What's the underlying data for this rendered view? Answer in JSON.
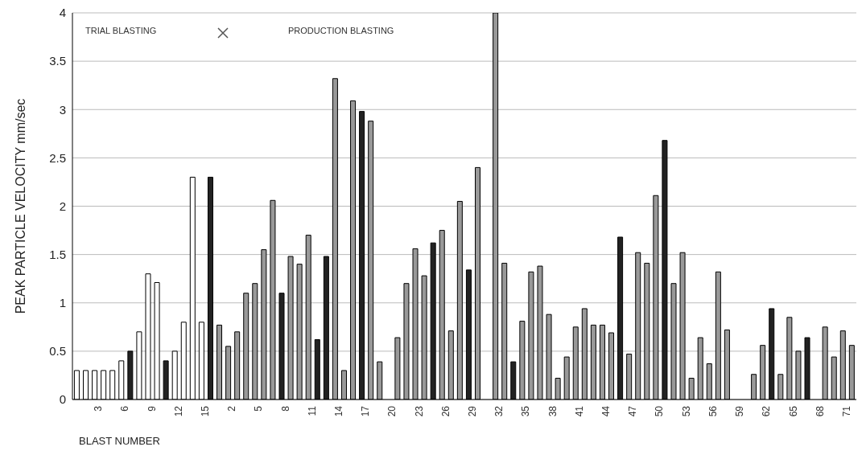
{
  "chart_data": {
    "type": "bar",
    "xlabel": "BLAST NUMBER",
    "ylabel": "PEAK PARTICLE VELOCITY mm/sec",
    "annotations": [
      "TRIAL BLASTING",
      "PRODUCTION BLASTING"
    ],
    "categories": [
      null,
      null,
      "3",
      null,
      null,
      "6",
      null,
      null,
      "9",
      null,
      null,
      "12",
      null,
      null,
      "15",
      null,
      null,
      "2",
      null,
      null,
      "5",
      null,
      null,
      "8",
      null,
      null,
      "11",
      null,
      null,
      "14",
      null,
      null,
      "17",
      null,
      null,
      "20",
      null,
      null,
      "23",
      null,
      null,
      "26",
      null,
      null,
      "29",
      null,
      null,
      "32",
      null,
      null,
      "35",
      null,
      null,
      "38",
      null,
      null,
      "41",
      null,
      null,
      "44",
      null,
      null,
      "47",
      null,
      null,
      "50",
      null,
      null,
      "53",
      null,
      null,
      "56",
      null,
      null,
      "59",
      null,
      null,
      "62",
      null,
      null,
      "65",
      null,
      null,
      "68",
      null,
      null,
      "71",
      null
    ],
    "values": [
      0.3,
      0.3,
      0.3,
      0.3,
      0.3,
      0.4,
      0.5,
      0.7,
      1.3,
      1.21,
      0.4,
      0.5,
      0.8,
      2.3,
      0.8,
      2.3,
      0.77,
      0.55,
      0.7,
      1.1,
      1.2,
      1.55,
      2.06,
      1.1,
      1.48,
      1.4,
      1.7,
      0.62,
      1.48,
      3.32,
      0.3,
      3.09,
      2.98,
      2.88,
      0.39,
      null,
      0.64,
      1.2,
      1.56,
      1.28,
      1.62,
      1.75,
      0.71,
      2.05,
      1.34,
      2.4,
      null,
      4.0,
      1.41,
      0.39,
      0.81,
      1.32,
      1.38,
      0.88,
      0.22,
      0.44,
      0.75,
      0.94,
      0.77,
      0.77,
      0.69,
      1.68,
      0.47,
      1.52,
      1.41,
      2.11,
      2.68,
      1.2,
      1.52,
      0.22,
      0.64,
      0.37,
      1.32,
      0.72,
      null,
      null,
      0.26,
      0.56,
      0.94,
      0.26,
      0.85,
      0.5,
      0.64,
      null,
      0.75,
      0.44,
      0.71,
      0.56
    ],
    "colors": [
      "#ffffff",
      "#ffffff",
      "#ffffff",
      "#ffffff",
      "#ffffff",
      "#ffffff",
      "#222222",
      "#ffffff",
      "#ffffff",
      "#ffffff",
      "#222222",
      "#ffffff",
      "#ffffff",
      "#ffffff",
      "#ffffff",
      "#222222",
      "#999999",
      "#999999",
      "#999999",
      "#999999",
      "#999999",
      "#999999",
      "#999999",
      "#222222",
      "#999999",
      "#999999",
      "#999999",
      "#222222",
      "#222222",
      "#999999",
      "#999999",
      "#999999",
      "#222222",
      "#999999",
      "#999999",
      "#999999",
      "#999999",
      "#999999",
      "#999999",
      "#999999",
      "#222222",
      "#999999",
      "#999999",
      "#999999",
      "#222222",
      "#999999",
      "#999999",
      "#999999",
      "#999999",
      "#222222",
      "#999999",
      "#999999",
      "#999999",
      "#999999",
      "#999999",
      "#999999",
      "#999999",
      "#999999",
      "#999999",
      "#999999",
      "#999999",
      "#222222",
      "#999999",
      "#999999",
      "#999999",
      "#999999",
      "#222222",
      "#999999",
      "#999999",
      "#999999",
      "#999999",
      "#999999",
      "#999999",
      "#999999",
      "#999999",
      "#999999",
      "#999999",
      "#999999",
      "#222222",
      "#999999",
      "#999999",
      "#999999",
      "#222222",
      "#999999",
      "#999999",
      "#999999",
      "#999999",
      "#999999"
    ],
    "ylim": [
      0,
      4
    ],
    "yticks": [
      0,
      0.5,
      1,
      1.5,
      2,
      2.5,
      3,
      3.5,
      4
    ],
    "grid": "y"
  }
}
